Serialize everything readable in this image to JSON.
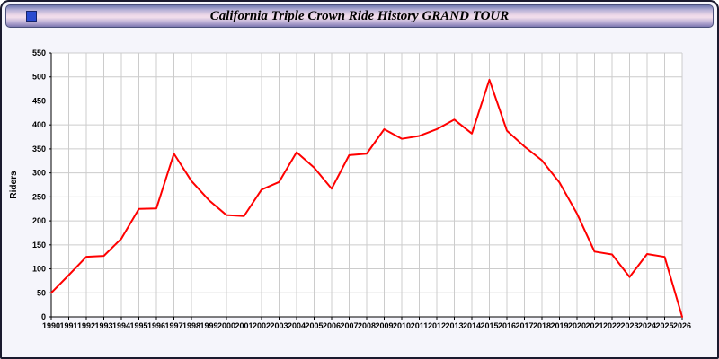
{
  "header": {
    "title": "California Triple Crown Ride History GRAND TOUR",
    "icon": "blue-square-icon"
  },
  "colors": {
    "line": "#ff0000",
    "grid": "#cccccc",
    "axis": "#000000",
    "plot_background": "#ffffff",
    "page_background": "#f5f5fb"
  },
  "chart_data": {
    "type": "line",
    "title": "California Triple Crown Ride History GRAND TOUR",
    "xlabel": "",
    "ylabel": "Riders",
    "ylim": [
      0,
      550
    ],
    "y_ticks": [
      0,
      50,
      100,
      150,
      200,
      250,
      300,
      350,
      400,
      450,
      500,
      550
    ],
    "grid": true,
    "legend_position": "none",
    "line_color": "#ff0000",
    "grid_color": "#cccccc",
    "categories": [
      "1990",
      "1991",
      "1992",
      "1993",
      "1994",
      "1995",
      "1996",
      "1997",
      "1998",
      "1999",
      "2000",
      "2001",
      "2002",
      "2003",
      "2004",
      "2005",
      "2006",
      "2007",
      "2008",
      "2009",
      "2010",
      "2011",
      "2012",
      "2013",
      "2014",
      "2015",
      "2016",
      "2017",
      "2018",
      "2019",
      "2020",
      "2021",
      "2022",
      "2023",
      "2024",
      "2025",
      "2026"
    ],
    "series": [
      {
        "name": "Riders",
        "values": [
          50,
          87,
          125,
          127,
          163,
          225,
          226,
          340,
          283,
          243,
          212,
          210,
          265,
          281,
          343,
          311,
          267,
          337,
          340,
          391,
          371,
          377,
          391,
          411,
          382,
          494,
          388,
          355,
          326,
          280,
          215,
          136,
          130,
          83,
          131,
          125,
          0
        ]
      }
    ]
  }
}
